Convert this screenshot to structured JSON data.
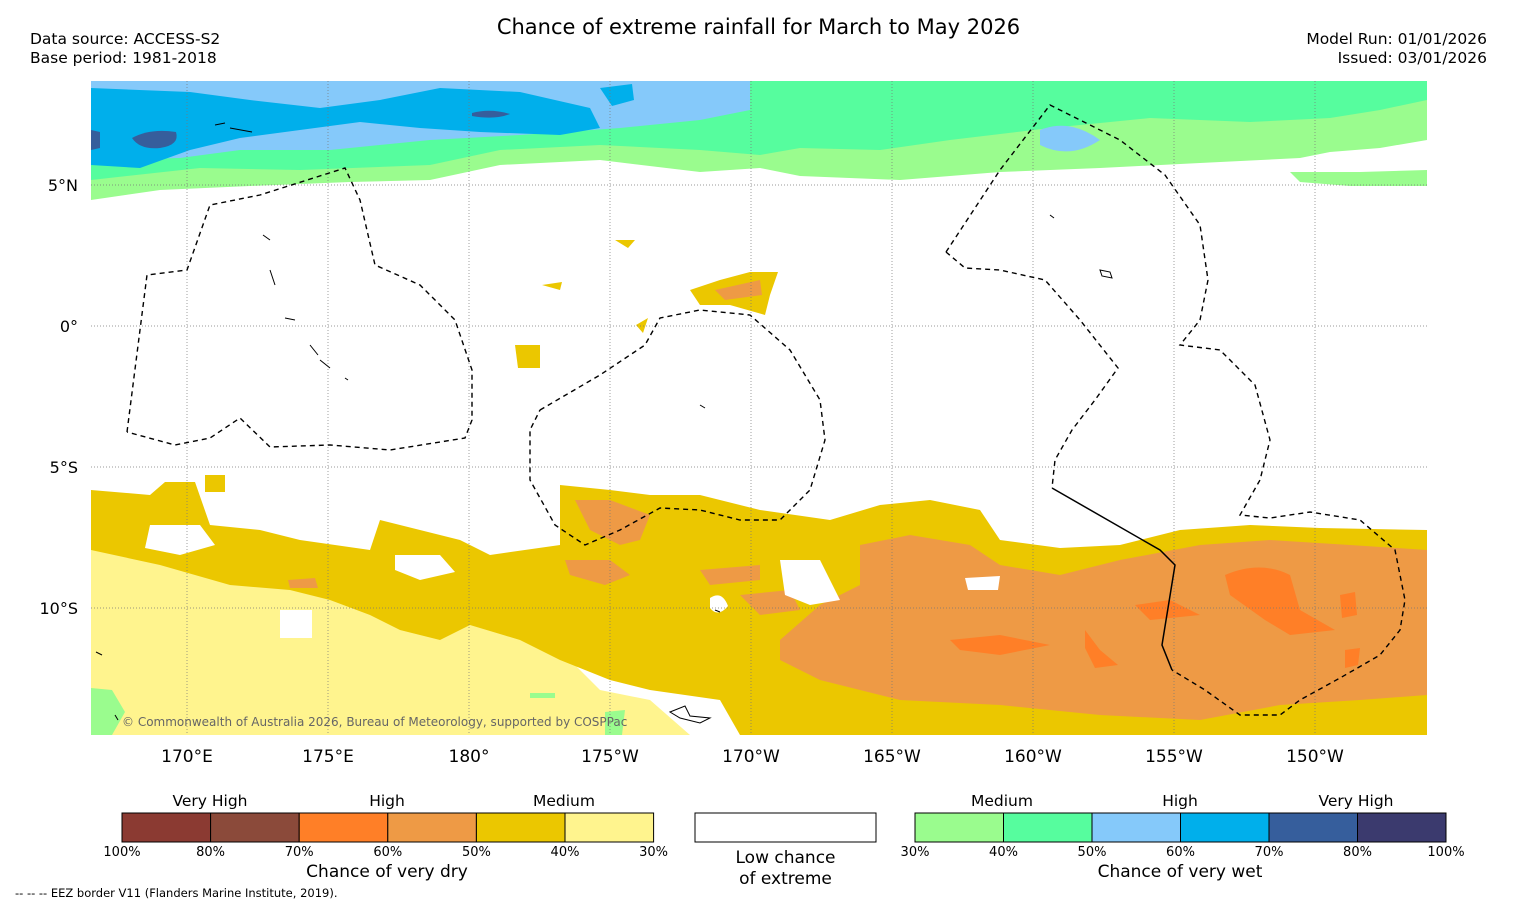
{
  "title": "Chance of extreme rainfall for March to May 2026",
  "meta": {
    "data_source": "Data source: ACCESS-S2",
    "base_period": "Base period: 1981-2018",
    "model_run": "Model Run: 01/01/2026",
    "issued": "Issued: 03/01/2026"
  },
  "map": {
    "lat_labels": [
      "5°N",
      "0°",
      "5°S",
      "10°S"
    ],
    "lon_labels": [
      "170°E",
      "175°E",
      "180°",
      "175°W",
      "170°W",
      "165°W",
      "160°W",
      "155°W",
      "150°W"
    ],
    "copyright": "© Commonwealth of Australia 2026, Bureau of Meteorology, supported by COSPPac"
  },
  "legend": {
    "dry": {
      "group_labels": [
        "Very High",
        "High",
        "Medium"
      ],
      "ticks": [
        "100%",
        "80%",
        "70%",
        "60%",
        "50%",
        "40%",
        "30%"
      ],
      "caption": "Chance of very dry",
      "colors": [
        "#8b3a32",
        "#8b4a3a",
        "#ff7f27",
        "#ee9a45",
        "#ebc700",
        "#fff48e"
      ]
    },
    "low": {
      "caption_line1": "Low chance",
      "caption_line2": "of extreme"
    },
    "wet": {
      "group_labels": [
        "Medium",
        "High",
        "Very High"
      ],
      "ticks": [
        "30%",
        "40%",
        "50%",
        "60%",
        "70%",
        "80%",
        "100%"
      ],
      "caption": "Chance of very wet",
      "colors": [
        "#9afc8e",
        "#56fd9e",
        "#85c9fa",
        "#00afeb",
        "#365e9c",
        "#3b3a6e"
      ]
    }
  },
  "footer": "--  --  -- EEZ border V11 (Flanders Marine Institute, 2019)."
}
